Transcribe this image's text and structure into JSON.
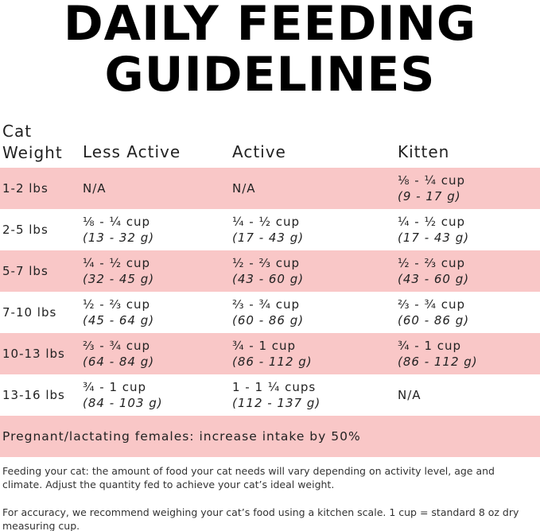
{
  "header": {
    "title_line1": "DAILY FEEDING",
    "title_line2": "GUIDELINES"
  },
  "table": {
    "columns": [
      "Cat Weight",
      "Less Active",
      "Active",
      "Kitten"
    ],
    "rows": [
      {
        "weight": "1-2 lbs",
        "cells": [
          {
            "amount": "N/A"
          },
          {
            "amount": "N/A"
          },
          {
            "amount": "⅛ - ¼ cup",
            "grams": "(9 - 17 g)"
          }
        ]
      },
      {
        "weight": "2-5 lbs",
        "cells": [
          {
            "amount": "⅛ - ¼ cup",
            "grams": "(13 - 32 g)"
          },
          {
            "amount": "¼ - ½ cup",
            "grams": "(17 - 43 g)"
          },
          {
            "amount": "¼ - ½ cup",
            "grams": "(17 - 43 g)"
          }
        ]
      },
      {
        "weight": "5-7 lbs",
        "cells": [
          {
            "amount": "¼ - ½ cup",
            "grams": "(32 - 45 g)"
          },
          {
            "amount": "½ - ⅔ cup",
            "grams": "(43 - 60 g)"
          },
          {
            "amount": "½ - ⅔ cup",
            "grams": "(43 - 60 g)"
          }
        ]
      },
      {
        "weight": "7-10 lbs",
        "cells": [
          {
            "amount": "½ - ⅔ cup",
            "grams": "(45 - 64 g)"
          },
          {
            "amount": "⅔ - ¾ cup",
            "grams": "(60 - 86 g)"
          },
          {
            "amount": "⅔ - ¾ cup",
            "grams": "(60 - 86 g)"
          }
        ]
      },
      {
        "weight": "10-13 lbs",
        "cells": [
          {
            "amount": "⅔ - ¾ cup",
            "grams": "(64 - 84 g)"
          },
          {
            "amount": "¾ - 1 cup",
            "grams": "(86 - 112 g)"
          },
          {
            "amount": "¾ - 1 cup",
            "grams": "(86 - 112 g)"
          }
        ]
      },
      {
        "weight": "13-16 lbs",
        "cells": [
          {
            "amount": "¾ - 1 cup",
            "grams": "(84 - 103 g)"
          },
          {
            "amount": "1 - 1 ¼ cups",
            "grams": "(112 - 137 g)"
          },
          {
            "amount": "N/A"
          }
        ]
      }
    ],
    "footer_row": "Pregnant/lactating females: increase intake by 50%"
  },
  "notes": [
    "Feeding your cat: the amount of food your cat needs will vary depending on activity level, age and climate. Adjust the quantity fed to achieve your cat’s ideal weight.",
    "For accuracy, we recommend weighing your cat’s food using a kitchen scale. 1 cup = standard 8 oz dry measuring cup."
  ]
}
